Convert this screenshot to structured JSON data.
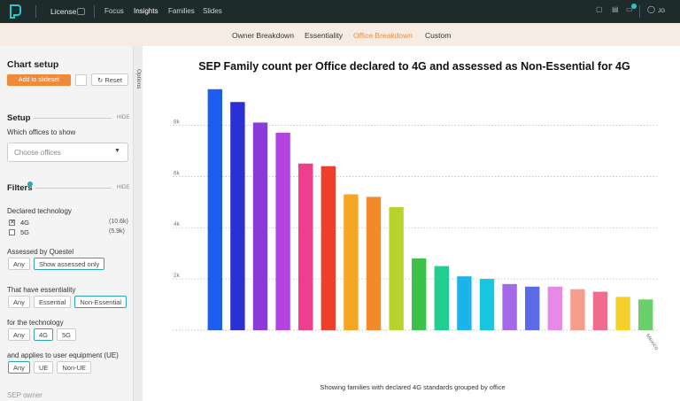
{
  "nav": {
    "product": "License",
    "links": [
      "Focus",
      "Insights",
      "Families",
      "Slides"
    ],
    "active_link": 1,
    "user": "JG"
  },
  "tabs": {
    "items": [
      "Owner Breakdown",
      "Essentiality",
      "Office Breakdown",
      "Custom"
    ],
    "active": 2
  },
  "sidebar": {
    "title": "Chart setup",
    "add_button": "Add to slideset",
    "reset_button": "Reset",
    "options_tab": "Options",
    "setup": {
      "heading": "Setup",
      "hide": "HIDE",
      "offices_label": "Which offices to show",
      "offices_placeholder": "Choose offices"
    },
    "filters": {
      "heading": "Filters",
      "hide": "HIDE",
      "technology_label": "Declared technology",
      "technologies": [
        {
          "name": "4G",
          "count": "(10.6k)",
          "checked": true
        },
        {
          "name": "5G",
          "count": "(5.9k)",
          "checked": false
        }
      ],
      "groups": [
        {
          "label": "Assessed by Questel",
          "options": [
            "Any",
            "Show assessed only"
          ],
          "selected": 1
        },
        {
          "label": "That have essentiality",
          "options": [
            "Any",
            "Essential",
            "Non-Essential"
          ],
          "selected": 2
        },
        {
          "label": "for the technology",
          "options": [
            "Any",
            "4G",
            "5G"
          ],
          "selected": 1
        },
        {
          "label": "and applies to user equipment (UE)",
          "options": [
            "Any",
            "UE",
            "Non-UE"
          ],
          "selected": 0
        }
      ]
    },
    "sep_owner": "SEP owner"
  },
  "chart_data": {
    "type": "bar",
    "title": "SEP Family count per Office declared to 4G and assessed as Non-Essential for 4G",
    "footnote": "Showing families with declared 4G standards grouped by office",
    "categories": [
      null,
      null,
      null,
      null,
      null,
      null,
      null,
      null,
      null,
      null,
      null,
      null,
      null,
      null,
      null,
      null,
      null,
      null,
      null,
      "Mexico"
    ],
    "values": [
      9400,
      8900,
      8100,
      7700,
      6500,
      6400,
      5300,
      5200,
      4800,
      2800,
      2500,
      2100,
      2000,
      1800,
      1700,
      1700,
      1600,
      1500,
      1300,
      1200
    ],
    "colors": [
      "#1c5cf0",
      "#2b30d4",
      "#8a3ad8",
      "#b443e0",
      "#ee3f8c",
      "#ef3f2c",
      "#f6a623",
      "#f38a2a",
      "#b6d42b",
      "#3cc24a",
      "#20cf8f",
      "#1cb3ea",
      "#18c6df",
      "#a26ae8",
      "#5b6be8",
      "#e78ae6",
      "#f69c8c",
      "#f06b8c",
      "#f5cf2a",
      "#6bd06b"
    ],
    "ylim": [
      0,
      9600
    ],
    "yticks": [
      {
        "value": 2000,
        "label": "2k"
      },
      {
        "value": 4000,
        "label": "4k"
      },
      {
        "value": 6000,
        "label": "6k"
      },
      {
        "value": 8000,
        "label": "8k"
      }
    ],
    "grid": true
  }
}
